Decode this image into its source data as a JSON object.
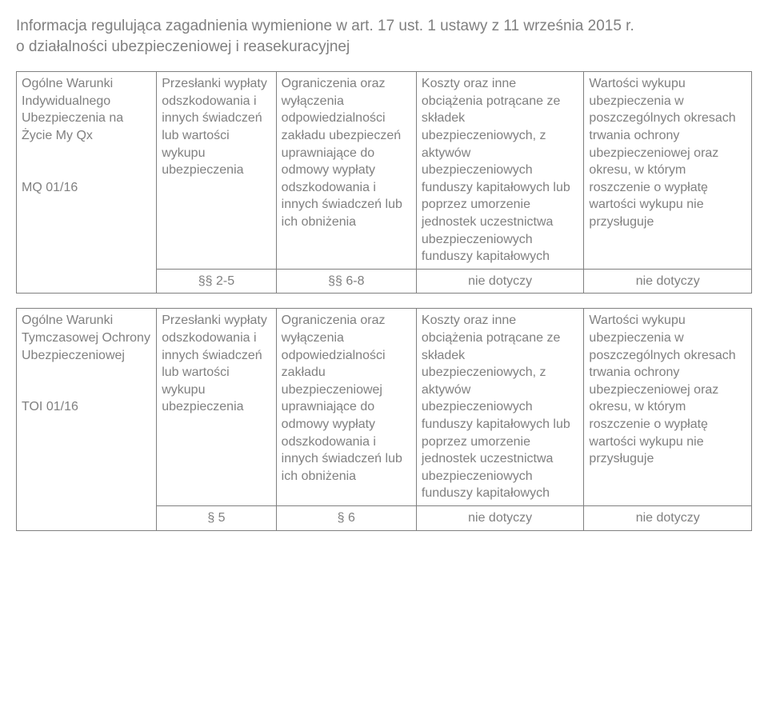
{
  "header": {
    "line1": "Informacja regulująca zagadnienia wymienione w art. 17 ust. 1 ustawy z 11 września 2015 r.",
    "line2": "o działalności ubezpieczeniowej i reasekuracyjnej"
  },
  "row1": {
    "c1": "Ogólne Warunki Indywidualnego Ubezpieczenia na Życie My Qx\n\nMQ 01/16",
    "c2": "Przesłanki wypłaty odszkodowania i innych świadczeń lub wartości wykupu ubezpieczenia",
    "c3": "Ograniczenia oraz wyłączenia odpowiedzialności zakładu ubezpieczeń uprawniające do odmowy wypłaty odszkodowania i innych świadczeń lub ich obniżenia",
    "c4": "Koszty oraz inne obciążenia potrącane ze składek ubezpieczeniowych, z aktywów ubezpieczeniowych funduszy kapitałowych lub poprzez umorzenie jednostek uczestnictwa ubezpieczeniowych funduszy kapitałowych",
    "c5": "Wartości wykupu ubezpieczenia w poszczególnych okresach trwania ochrony ubezpieczeniowej oraz okresu, w którym roszczenie o wypłatę wartości wykupu nie przysługuje"
  },
  "row1b": {
    "c2": "§§ 2-5",
    "c3": "§§ 6-8",
    "c4": "nie dotyczy",
    "c5": "nie dotyczy"
  },
  "row2": {
    "c1": "Ogólne Warunki Tymczasowej Ochrony Ubezpieczeniowej\n\nTOI 01/16",
    "c2": "Przesłanki wypłaty odszkodowania i innych świadczeń lub wartości wykupu ubezpieczenia",
    "c3": "Ograniczenia oraz wyłączenia odpowiedzialności zakładu ubezpieczeniowej uprawniające do odmowy wypłaty odszkodowania i innych świadczeń lub ich obniżenia",
    "c4": "Koszty oraz inne obciążenia potrącane ze składek ubezpieczeniowych, z aktywów ubezpieczeniowych funduszy kapitałowych lub poprzez umorzenie jednostek uczestnictwa ubezpieczeniowych funduszy kapitałowych",
    "c5": "Wartości wykupu ubezpieczenia w poszczególnych okresach trwania ochrony ubezpieczeniowej oraz okresu, w którym roszczenie o wypłatę wartości wykupu nie przysługuje"
  },
  "row2b": {
    "c2": "§ 5",
    "c3": "§ 6",
    "c4": "nie dotyczy",
    "c5": "nie dotyczy"
  },
  "styles": {
    "text_color": "#808080",
    "border_color": "#808080",
    "background_color": "#ffffff",
    "header_fontsize": 19,
    "cell_fontsize": 16,
    "column_widths_pct": [
      19,
      16,
      19,
      23,
      23
    ]
  }
}
